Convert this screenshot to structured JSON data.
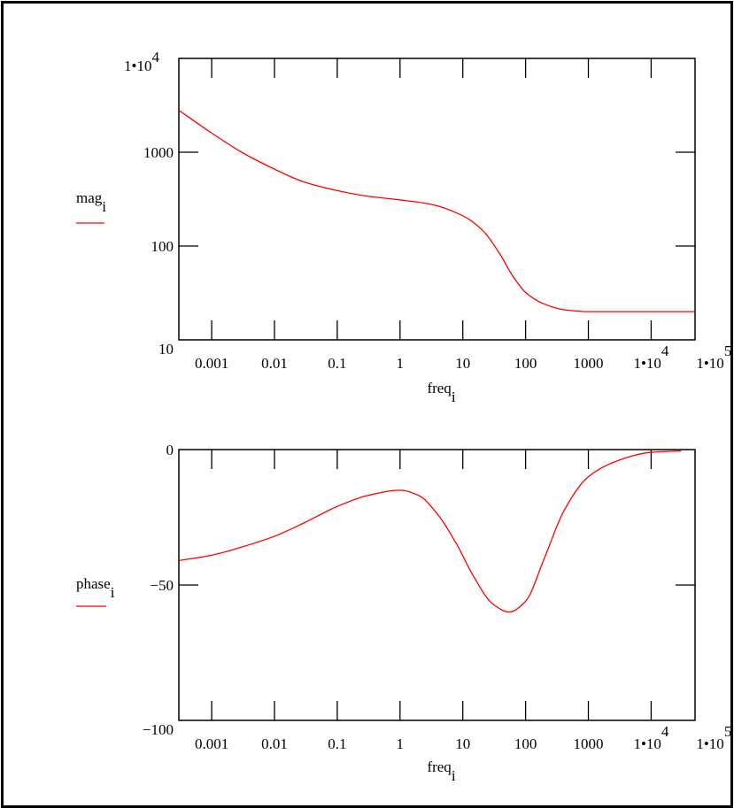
{
  "colors": {
    "line": "#ff0000",
    "axis": "#000000",
    "background": "#ffffff"
  },
  "chart_data": [
    {
      "type": "line",
      "xscale": "log",
      "yscale": "log",
      "xlim": [
        0.0003,
        50000
      ],
      "ylim": [
        10,
        10000
      ],
      "xlabel": {
        "base": "freq",
        "sub": "i"
      },
      "ylabel": {
        "base": "mag",
        "sub": "i"
      },
      "x_ticks": [
        {
          "value": 0.001,
          "label": "0.001"
        },
        {
          "value": 0.01,
          "label": "0.01"
        },
        {
          "value": 0.1,
          "label": "0.1"
        },
        {
          "value": 1,
          "label": "1"
        },
        {
          "value": 10,
          "label": "10"
        },
        {
          "value": 100,
          "label": "100"
        },
        {
          "value": 1000,
          "label": "1000"
        },
        {
          "value": 10000,
          "label": "1•10",
          "exp": "4"
        },
        {
          "value": 100000,
          "label": "1•10",
          "exp": "5"
        }
      ],
      "y_ticks": [
        {
          "value": 10,
          "label": "10"
        },
        {
          "value": 100,
          "label": "100"
        },
        {
          "value": 1000,
          "label": "1000"
        },
        {
          "value": 10000,
          "label": "1•10",
          "exp": "4"
        }
      ],
      "series": [
        {
          "x": [
            0.0003,
            0.001,
            0.003,
            0.01,
            0.03,
            0.1,
            0.3,
            1,
            3,
            10,
            20,
            40,
            60,
            100,
            200,
            400,
            1000,
            3000,
            10000,
            50000
          ],
          "y": [
            2800,
            1600,
            1000,
            660,
            480,
            390,
            340,
            310,
            280,
            210,
            150,
            80,
            50,
            32,
            24,
            21,
            20,
            20,
            20,
            20
          ]
        }
      ]
    },
    {
      "type": "line",
      "xscale": "log",
      "xlim": [
        0.0003,
        50000
      ],
      "ylim": [
        -100,
        0
      ],
      "xlabel": {
        "base": "freq",
        "sub": "i"
      },
      "ylabel": {
        "base": "phase",
        "sub": "i"
      },
      "x_ticks": [
        {
          "value": 0.001,
          "label": "0.001"
        },
        {
          "value": 0.01,
          "label": "0.01"
        },
        {
          "value": 0.1,
          "label": "0.1"
        },
        {
          "value": 1,
          "label": "1"
        },
        {
          "value": 10,
          "label": "10"
        },
        {
          "value": 100,
          "label": "100"
        },
        {
          "value": 1000,
          "label": "1000"
        },
        {
          "value": 10000,
          "label": "1•10",
          "exp": "4"
        },
        {
          "value": 100000,
          "label": "1•10",
          "exp": "5"
        }
      ],
      "y_ticks": [
        {
          "value": 0,
          "label": "0"
        },
        {
          "value": -50,
          "label": "−50"
        },
        {
          "value": -100,
          "label": "−100"
        }
      ],
      "series": [
        {
          "x": [
            0.0003,
            0.001,
            0.003,
            0.01,
            0.03,
            0.1,
            0.3,
            1,
            2,
            4,
            8,
            15,
            30,
            55,
            100,
            200,
            400,
            1000,
            3000,
            10000,
            30000
          ],
          "y": [
            -41,
            -39,
            -36,
            -32,
            -27,
            -21,
            -17,
            -15,
            -17,
            -24,
            -35,
            -47,
            -57,
            -60,
            -56,
            -40,
            -23,
            -10,
            -4,
            -1,
            -0.5
          ]
        }
      ]
    }
  ]
}
